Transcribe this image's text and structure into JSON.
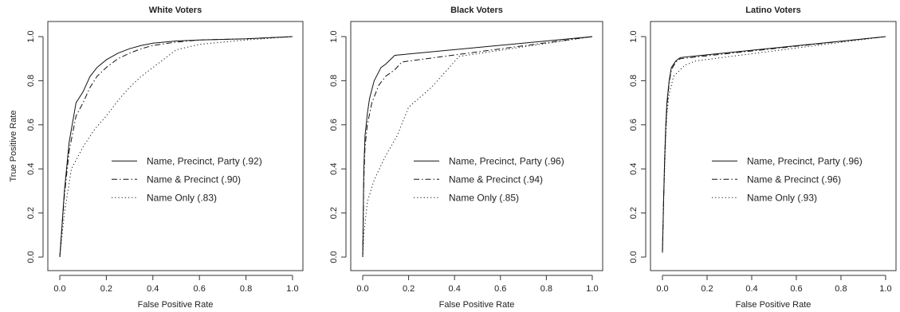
{
  "chart_data": [
    {
      "type": "line",
      "title": "White Voters",
      "xlabel": "False Positive Rate",
      "ylabel": "True Positive Rate",
      "xlim": [
        0,
        1
      ],
      "ylim": [
        0,
        1
      ],
      "x_ticks": [
        "0.0",
        "0.2",
        "0.4",
        "0.6",
        "0.8",
        "1.0"
      ],
      "y_ticks": [
        "0.0",
        "0.2",
        "0.4",
        "0.6",
        "0.8",
        "1.0"
      ],
      "grid": false,
      "legend_position": "center-right",
      "series": [
        {
          "name": "Name, Precinct, Party (.92)",
          "line_style": "solid",
          "x": [
            0,
            0.02,
            0.04,
            0.07,
            0.1,
            0.13,
            0.16,
            0.2,
            0.25,
            0.3,
            0.35,
            0.4,
            0.5,
            0.6,
            0.8,
            1.0
          ],
          "y": [
            0,
            0.3,
            0.52,
            0.7,
            0.75,
            0.82,
            0.86,
            0.895,
            0.925,
            0.945,
            0.96,
            0.97,
            0.98,
            0.985,
            0.99,
            1.0
          ]
        },
        {
          "name": "Name & Precinct (.90)",
          "line_style": "dashdot",
          "x": [
            0,
            0.02,
            0.04,
            0.07,
            0.1,
            0.13,
            0.16,
            0.2,
            0.25,
            0.3,
            0.35,
            0.4,
            0.5,
            0.6,
            0.8,
            1.0
          ],
          "y": [
            0,
            0.28,
            0.48,
            0.64,
            0.7,
            0.77,
            0.82,
            0.86,
            0.9,
            0.925,
            0.945,
            0.96,
            0.975,
            0.985,
            0.99,
            1.0
          ]
        },
        {
          "name": "Name Only (.83)",
          "line_style": "dotted",
          "x": [
            0,
            0.02,
            0.05,
            0.1,
            0.15,
            0.2,
            0.25,
            0.3,
            0.35,
            0.4,
            0.45,
            0.5,
            0.6,
            0.8,
            1.0
          ],
          "y": [
            0,
            0.2,
            0.4,
            0.5,
            0.58,
            0.64,
            0.71,
            0.77,
            0.82,
            0.86,
            0.9,
            0.94,
            0.965,
            0.985,
            1.0
          ]
        }
      ]
    },
    {
      "type": "line",
      "title": "Black Voters",
      "xlabel": "False Positive Rate",
      "ylabel": "",
      "xlim": [
        0,
        1
      ],
      "ylim": [
        0,
        1
      ],
      "x_ticks": [
        "0.0",
        "0.2",
        "0.4",
        "0.6",
        "0.8",
        "1.0"
      ],
      "y_ticks": [
        "0.0",
        "0.2",
        "0.4",
        "0.6",
        "0.8",
        "1.0"
      ],
      "grid": false,
      "legend_position": "center-right",
      "series": [
        {
          "name": "Name, Precinct, Party (.96)",
          "line_style": "solid",
          "x": [
            0,
            0.005,
            0.01,
            0.02,
            0.03,
            0.05,
            0.08,
            0.1,
            0.14,
            1.0
          ],
          "y": [
            0,
            0.4,
            0.55,
            0.65,
            0.72,
            0.8,
            0.86,
            0.875,
            0.915,
            1.0
          ]
        },
        {
          "name": "Name & Precinct (.94)",
          "line_style": "dashdot",
          "x": [
            0,
            0.005,
            0.01,
            0.02,
            0.04,
            0.07,
            0.1,
            0.14,
            0.17,
            1.0
          ],
          "y": [
            0,
            0.35,
            0.5,
            0.6,
            0.7,
            0.78,
            0.82,
            0.85,
            0.885,
            1.0
          ]
        },
        {
          "name": "Name Only (.85)",
          "line_style": "dotted",
          "x": [
            0,
            0.005,
            0.02,
            0.05,
            0.1,
            0.15,
            0.2,
            0.3,
            0.42,
            1.0
          ],
          "y": [
            0,
            0.1,
            0.25,
            0.35,
            0.46,
            0.55,
            0.68,
            0.77,
            0.91,
            1.0
          ]
        }
      ]
    },
    {
      "type": "line",
      "title": "Latino Voters",
      "xlabel": "False Positive Rate",
      "ylabel": "",
      "xlim": [
        0,
        1
      ],
      "ylim": [
        0,
        1
      ],
      "x_ticks": [
        "0.0",
        "0.2",
        "0.4",
        "0.6",
        "0.8",
        "1.0"
      ],
      "y_ticks": [
        "0.0",
        "0.2",
        "0.4",
        "0.6",
        "0.8",
        "1.0"
      ],
      "grid": false,
      "legend_position": "center-right",
      "series": [
        {
          "name": "Name, Precinct, Party (.96)",
          "line_style": "solid",
          "x": [
            0,
            0.005,
            0.01,
            0.015,
            0.02,
            0.03,
            0.04,
            0.06,
            0.08,
            1.0
          ],
          "y": [
            0.02,
            0.25,
            0.45,
            0.6,
            0.7,
            0.8,
            0.86,
            0.89,
            0.905,
            1.0
          ]
        },
        {
          "name": "Name & Precinct (.96)",
          "line_style": "dashdot",
          "x": [
            0,
            0.005,
            0.01,
            0.015,
            0.02,
            0.03,
            0.04,
            0.06,
            0.08,
            1.0
          ],
          "y": [
            0.02,
            0.25,
            0.44,
            0.58,
            0.68,
            0.79,
            0.85,
            0.885,
            0.9,
            1.0
          ]
        },
        {
          "name": "Name Only (.93)",
          "line_style": "dotted",
          "x": [
            0,
            0.005,
            0.01,
            0.015,
            0.02,
            0.03,
            0.05,
            0.1,
            0.15,
            1.0
          ],
          "y": [
            0.02,
            0.25,
            0.4,
            0.55,
            0.65,
            0.74,
            0.82,
            0.87,
            0.89,
            1.0
          ]
        }
      ]
    }
  ]
}
